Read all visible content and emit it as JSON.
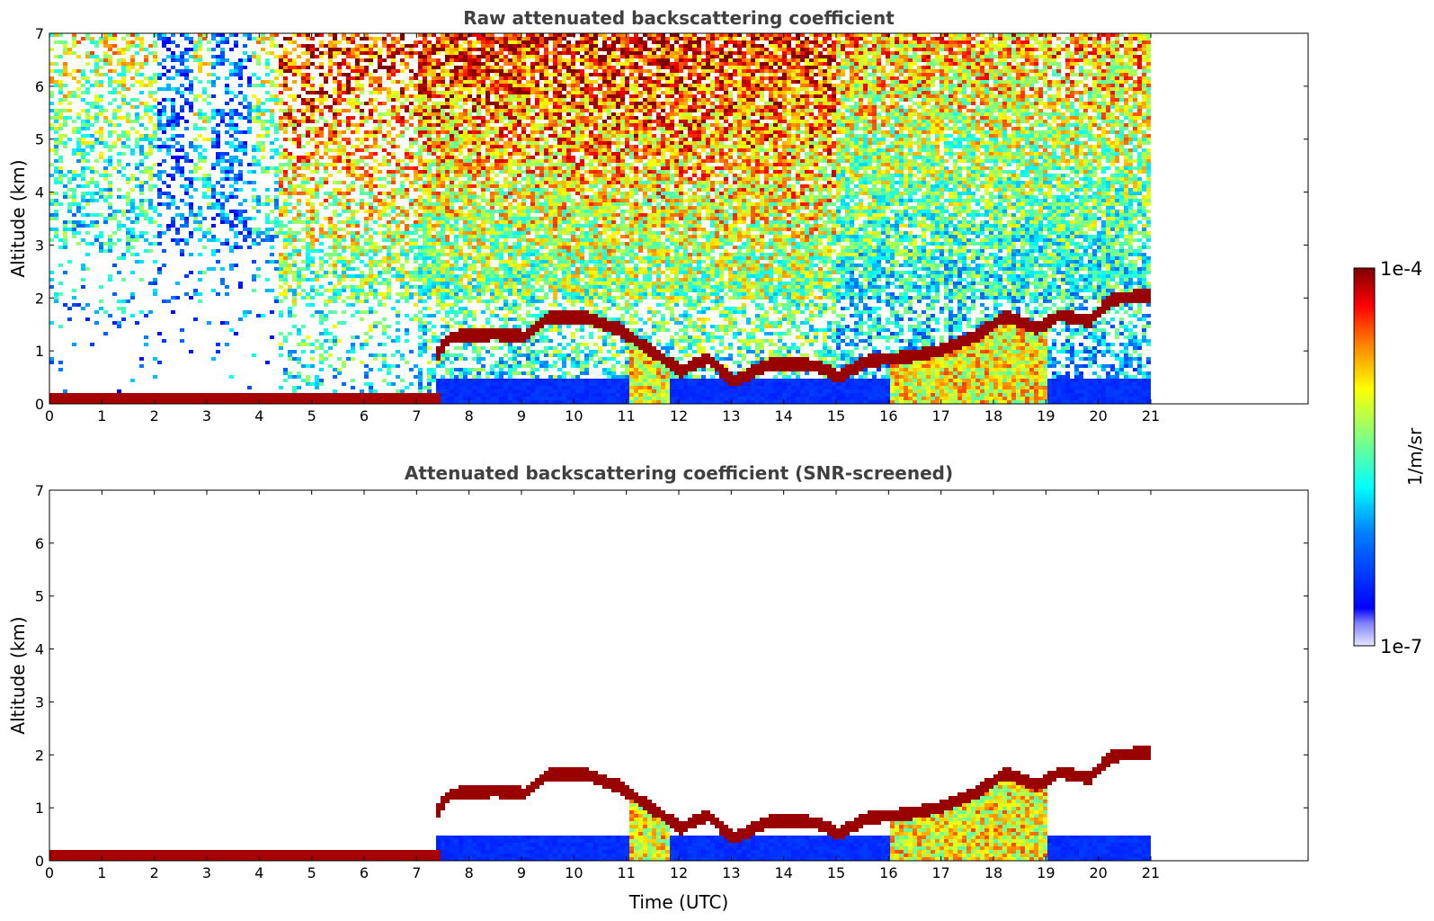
{
  "chart_data": [
    {
      "type": "heatmap",
      "title": "Raw attenuated backscattering coefficient",
      "xlabel": "",
      "ylabel": "Altitude (km)",
      "xlim": [
        0,
        24
      ],
      "ylim": [
        0,
        7
      ],
      "xticks": [
        0,
        1,
        2,
        3,
        4,
        5,
        6,
        7,
        8,
        9,
        10,
        11,
        12,
        13,
        14,
        15,
        16,
        17,
        18,
        19,
        20,
        21
      ],
      "yticks": [
        0,
        1,
        2,
        3,
        4,
        5,
        6,
        7
      ],
      "data_end_time": 21,
      "features": {
        "surface_layer": [
          [
            0,
            0.12
          ],
          [
            2,
            0.12
          ],
          [
            4,
            0.13
          ],
          [
            6,
            0.15
          ],
          [
            7,
            0.2
          ]
        ],
        "elevated_layer": [
          [
            7.3,
            0.9
          ],
          [
            7.6,
            1.3
          ],
          [
            8.5,
            1.35
          ],
          [
            9.0,
            1.3
          ],
          [
            9.5,
            1.68
          ],
          [
            10.2,
            1.65
          ],
          [
            10.8,
            1.45
          ],
          [
            11.4,
            1.05
          ],
          [
            12.0,
            0.65
          ],
          [
            12.5,
            0.9
          ],
          [
            13.0,
            0.45
          ],
          [
            13.6,
            0.75
          ],
          [
            14.0,
            0.8
          ],
          [
            14.6,
            0.75
          ],
          [
            15.0,
            0.55
          ],
          [
            15.6,
            0.85
          ],
          [
            16.2,
            0.9
          ],
          [
            17.0,
            1.05
          ],
          [
            17.6,
            1.3
          ],
          [
            18.2,
            1.7
          ],
          [
            18.8,
            1.45
          ],
          [
            19.2,
            1.7
          ],
          [
            19.8,
            1.6
          ],
          [
            20.2,
            2.0
          ],
          [
            21.0,
            2.1
          ]
        ]
      }
    },
    {
      "type": "heatmap",
      "title": "Attenuated backscattering coefficient (SNR-screened)",
      "xlabel": "Time (UTC)",
      "ylabel": "Altitude (km)",
      "xlim": [
        0,
        24
      ],
      "ylim": [
        0,
        7
      ],
      "xticks": [
        0,
        1,
        2,
        3,
        4,
        5,
        6,
        7,
        8,
        9,
        10,
        11,
        12,
        13,
        14,
        15,
        16,
        17,
        18,
        19,
        20,
        21
      ],
      "yticks": [
        0,
        1,
        2,
        3,
        4,
        5,
        6,
        7
      ],
      "data_end_time": 21
    }
  ],
  "colorbar": {
    "label": "1/m/sr",
    "min_label": "1e-7",
    "max_label": "1e-4",
    "colormap": "jet"
  },
  "colors": {
    "low": "#0000ff",
    "mid": "#ffff00",
    "high": "#800000"
  }
}
